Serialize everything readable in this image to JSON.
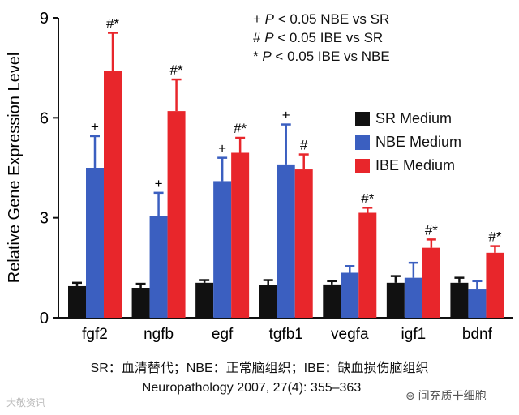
{
  "chart_data": {
    "type": "bar",
    "ylabel": "Relative Gene Expression Level",
    "ylim": [
      0,
      9
    ],
    "yticks": [
      0,
      3,
      6,
      9
    ],
    "categories": [
      "fgf2",
      "ngfb",
      "egf",
      "tgfb1",
      "vegfa",
      "igf1",
      "bdnf"
    ],
    "series": [
      {
        "name": "SR Medium",
        "color": "#111111",
        "values": [
          0.95,
          0.9,
          1.05,
          0.98,
          1.0,
          1.05,
          1.05
        ],
        "errors": [
          0.1,
          0.12,
          0.08,
          0.15,
          0.1,
          0.2,
          0.15
        ],
        "marks": [
          "",
          "",
          "",
          "",
          "",
          "",
          ""
        ]
      },
      {
        "name": "NBE Medium",
        "color": "#3b5fc0",
        "values": [
          4.5,
          3.05,
          4.1,
          4.6,
          1.35,
          1.2,
          0.85
        ],
        "errors": [
          0.95,
          0.7,
          0.7,
          1.2,
          0.2,
          0.45,
          0.25
        ],
        "marks": [
          "+",
          "+",
          "+",
          "+",
          "",
          "",
          ""
        ]
      },
      {
        "name": "IBE Medium",
        "color": "#e8262b",
        "values": [
          7.4,
          6.2,
          4.95,
          4.45,
          3.15,
          2.1,
          1.95
        ],
        "errors": [
          1.15,
          0.95,
          0.45,
          0.45,
          0.15,
          0.25,
          0.2
        ],
        "marks": [
          "#*",
          "#*",
          "#*",
          "#",
          "#*",
          "#*",
          "#*"
        ]
      }
    ],
    "annotations": [
      {
        "symbol": "+",
        "text": "P < 0.05 NBE vs SR"
      },
      {
        "symbol": "#",
        "text": "P < 0.05 IBE vs SR"
      },
      {
        "symbol": "*",
        "text": "P < 0.05 IBE vs NBE"
      }
    ],
    "legend_position": "right"
  },
  "notes": [
    {
      "symbol": "+",
      "p": "P",
      "rest": " < 0.05 NBE vs SR"
    },
    {
      "symbol": "#",
      "p": "P",
      "rest": " < 0.05 IBE vs SR"
    },
    {
      "symbol": "*",
      "p": "P",
      "rest": " < 0.05 IBE vs NBE"
    }
  ],
  "caption": {
    "line1": "SR：血清替代；NBE：正常脑组织；IBE：缺血损伤脑组织",
    "line2": "Neuropathology 2007, 27(4): 355–363"
  },
  "watermark": {
    "left": "大敬资讯",
    "right": "间充质干细胞"
  }
}
